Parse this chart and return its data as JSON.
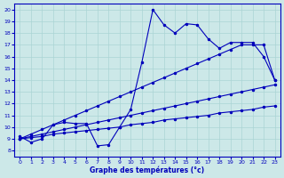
{
  "xlabel": "Graphe des températures (°c)",
  "background_color": "#cce8e8",
  "grid_color": "#aad4d4",
  "line_color": "#0000bb",
  "xlim": [
    -0.5,
    23.5
  ],
  "ylim": [
    7.5,
    20.5
  ],
  "yticks": [
    8,
    9,
    10,
    11,
    12,
    13,
    14,
    15,
    16,
    17,
    18,
    19,
    20
  ],
  "xticks": [
    0,
    1,
    2,
    3,
    4,
    5,
    6,
    7,
    8,
    9,
    10,
    11,
    12,
    13,
    14,
    15,
    16,
    17,
    18,
    19,
    20,
    21,
    22,
    23
  ],
  "main_temps": [
    9.2,
    8.7,
    9.0,
    10.2,
    10.4,
    10.3,
    10.3,
    8.4,
    8.5,
    10.0,
    11.5,
    15.5,
    20.0,
    18.7,
    18.0,
    18.8,
    18.7,
    17.5,
    16.7,
    17.2,
    17.2,
    17.2,
    16.0,
    14.0
  ],
  "reg_low": [
    9.0,
    9.1,
    9.2,
    9.4,
    9.5,
    9.6,
    9.7,
    9.8,
    9.9,
    10.0,
    10.2,
    10.3,
    10.4,
    10.6,
    10.7,
    10.8,
    10.9,
    11.0,
    11.2,
    11.3,
    11.4,
    11.5,
    11.7,
    11.8
  ],
  "reg_mid": [
    9.0,
    9.2,
    9.4,
    9.6,
    9.8,
    10.0,
    10.2,
    10.4,
    10.6,
    10.8,
    11.0,
    11.2,
    11.4,
    11.6,
    11.8,
    12.0,
    12.2,
    12.4,
    12.6,
    12.8,
    13.0,
    13.2,
    13.4,
    13.6
  ],
  "reg_high": [
    9.0,
    9.4,
    9.8,
    10.2,
    10.6,
    11.0,
    11.4,
    11.8,
    12.2,
    12.6,
    13.0,
    13.4,
    13.8,
    14.2,
    14.6,
    15.0,
    15.4,
    15.8,
    16.2,
    16.6,
    17.0,
    17.0,
    17.0,
    14.0
  ]
}
